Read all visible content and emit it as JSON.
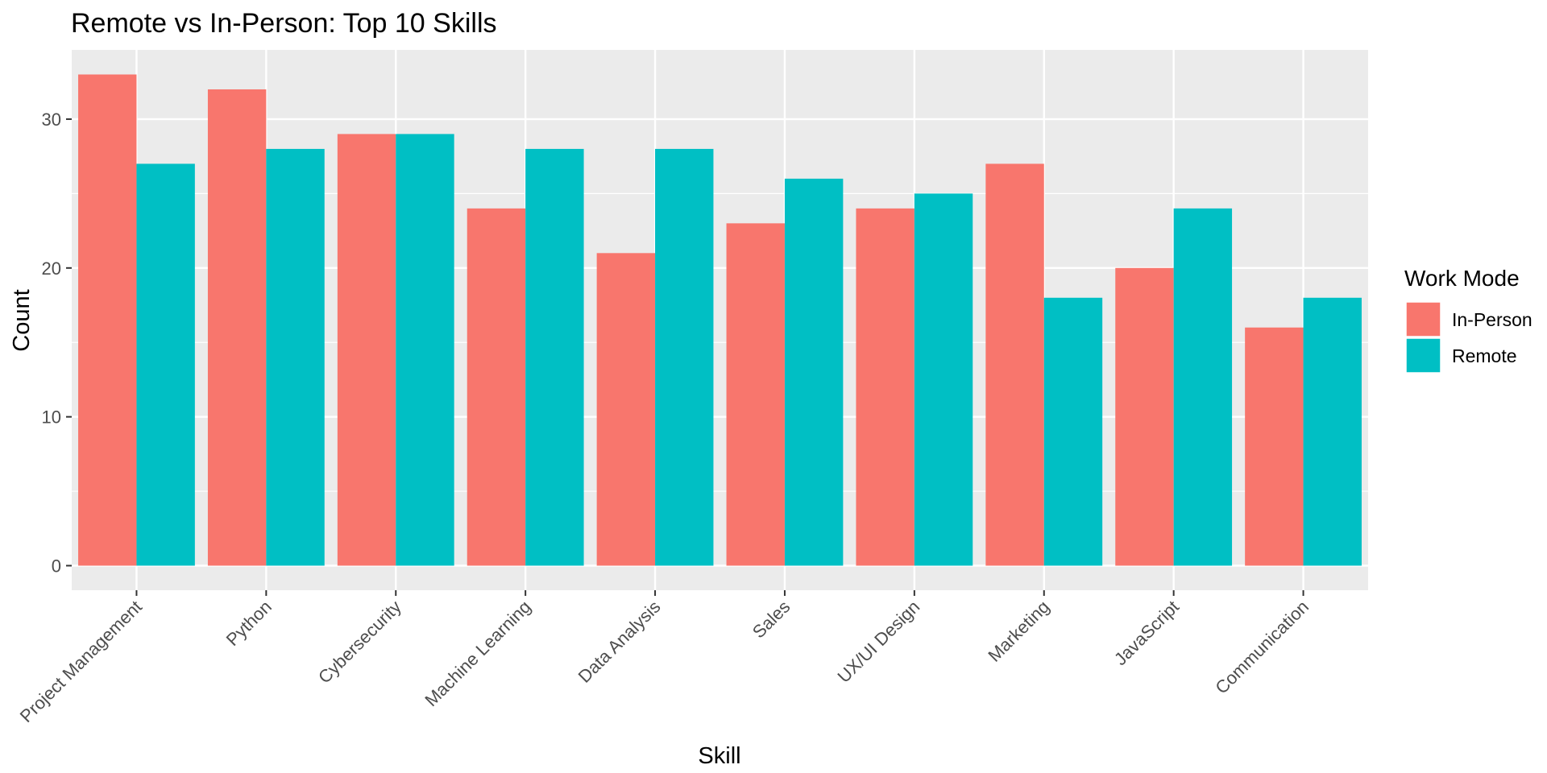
{
  "chart_data": {
    "type": "bar",
    "title": "Remote vs In-Person: Top 10 Skills",
    "xlabel": "Skill",
    "ylabel": "Count",
    "categories": [
      "Project Management",
      "Python",
      "Cybersecurity",
      "Machine Learning",
      "Data Analysis",
      "Sales",
      "UX/UI Design",
      "Marketing",
      "JavaScript",
      "Communication"
    ],
    "series": [
      {
        "name": "In-Person",
        "color": "#F8766D",
        "values": [
          33,
          32,
          29,
          24,
          21,
          23,
          24,
          27,
          20,
          16
        ]
      },
      {
        "name": "Remote",
        "color": "#00BFC4",
        "values": [
          27,
          28,
          29,
          28,
          28,
          26,
          25,
          18,
          24,
          18
        ]
      }
    ],
    "yticks": [
      0,
      10,
      20,
      30
    ],
    "ylim": [
      -1.65,
      34.65
    ],
    "grid": true,
    "legend": {
      "title": "Work Mode",
      "position": "right"
    }
  }
}
